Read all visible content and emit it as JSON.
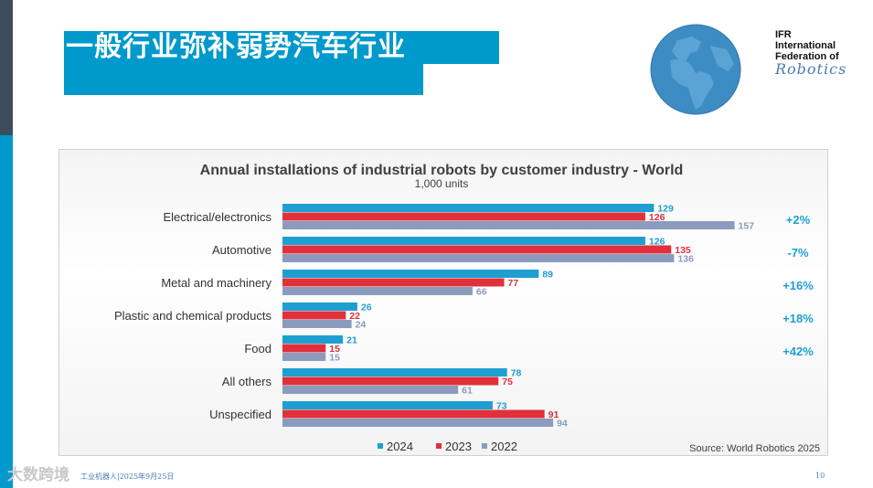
{
  "slide": {
    "title": "一般行业弥补弱势汽车行业",
    "footer_text": "工业机器人|2025年9月25日",
    "page_number": "10",
    "watermark": "大数跨境"
  },
  "logo": {
    "line1": "IFR",
    "line2": "International",
    "line3": "Federation of",
    "line4": "Robotics"
  },
  "colors": {
    "accent": "#0099cc",
    "series_2024": "#1e9fd1",
    "series_2023": "#e0303b",
    "series_2022": "#8b9bbd",
    "change": "#1e9fd1"
  },
  "chart_data": {
    "type": "bar",
    "orientation": "horizontal",
    "title": "Annual installations of industrial robots by customer industry - World",
    "subtitle": "1,000 units",
    "categories": [
      "Electrical/electronics",
      "Automotive",
      "Metal and machinery",
      "Plastic and chemical products",
      "Food",
      "All others",
      "Unspecified"
    ],
    "series": [
      {
        "name": "2024",
        "values": [
          129,
          126,
          89,
          26,
          21,
          78,
          73
        ]
      },
      {
        "name": "2023",
        "values": [
          126,
          135,
          77,
          22,
          15,
          75,
          91
        ]
      },
      {
        "name": "2022",
        "values": [
          157,
          136,
          66,
          24,
          15,
          61,
          94
        ]
      }
    ],
    "changes": [
      "+2%",
      "-7%",
      "+16%",
      "+18%",
      "+42%",
      "",
      ""
    ],
    "xlim": [
      0,
      160
    ],
    "legend_position": "bottom",
    "source": "Source: World Robotics 2025"
  }
}
